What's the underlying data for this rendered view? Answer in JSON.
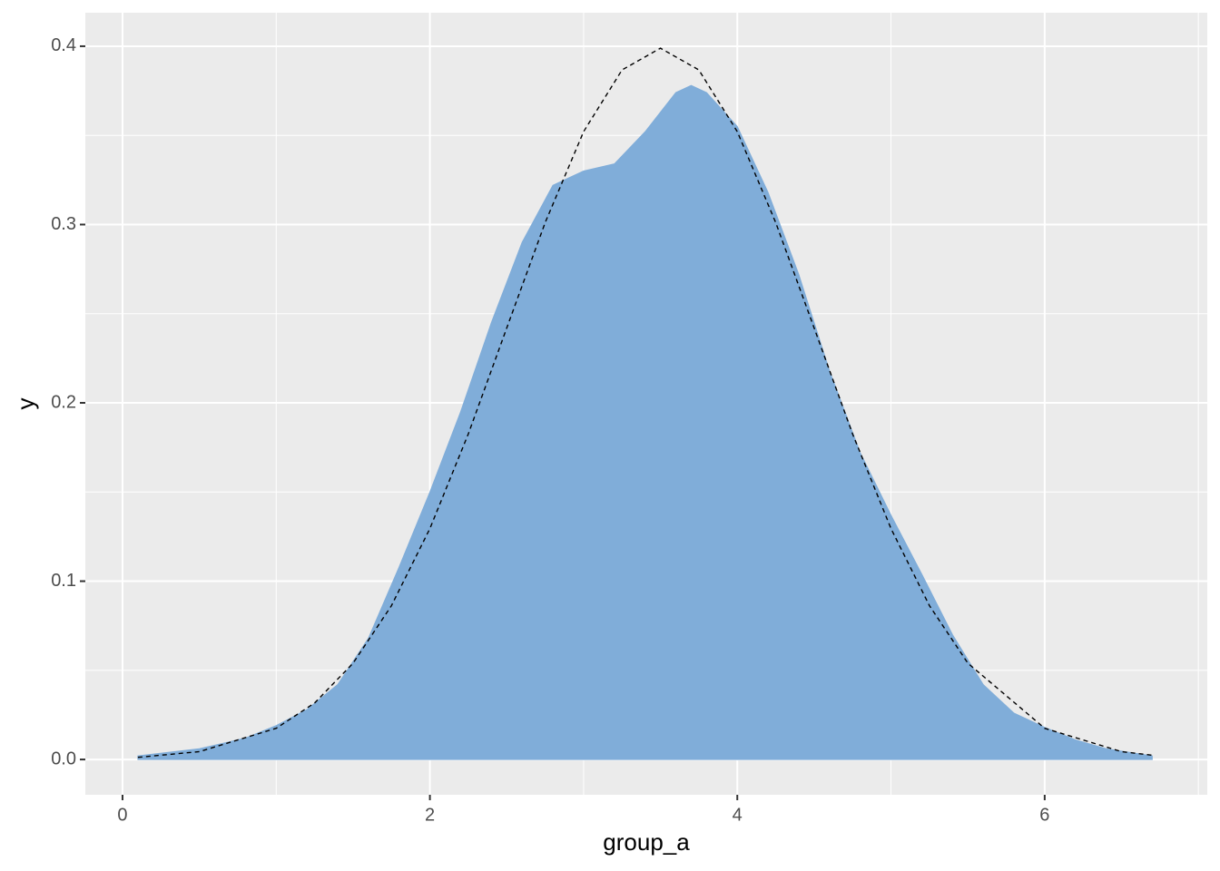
{
  "chart_data": {
    "type": "density",
    "x_label": "group_a",
    "y_label": "y",
    "xlim": [
      -0.242,
      7.058
    ],
    "ylim": [
      -0.0198,
      0.4188
    ],
    "xticks": [
      0,
      2,
      4,
      6
    ],
    "xminor": [
      1,
      3,
      5,
      7
    ],
    "yticks": [
      {
        "value": 0,
        "label": "0.0"
      },
      0.1,
      0.2,
      0.3,
      0.4
    ],
    "yminor": [
      0.05,
      0.15,
      0.25,
      0.35
    ],
    "grid": true,
    "series": [
      {
        "style": "area",
        "color": "#80add9",
        "x": [
          0.1,
          0.5,
          0.8,
          1.0,
          1.2,
          1.4,
          1.6,
          1.8,
          2.0,
          2.2,
          2.4,
          2.6,
          2.8,
          3.0,
          3.2,
          3.4,
          3.6,
          3.7,
          3.8,
          4.0,
          4.2,
          4.4,
          4.6,
          4.8,
          5.0,
          5.2,
          5.4,
          5.6,
          5.8,
          6.0,
          6.2,
          6.4,
          6.7
        ],
        "values": [
          0.002,
          0.006,
          0.012,
          0.019,
          0.028,
          0.042,
          0.068,
          0.108,
          0.15,
          0.195,
          0.245,
          0.29,
          0.322,
          0.33,
          0.334,
          0.352,
          0.374,
          0.378,
          0.374,
          0.355,
          0.318,
          0.272,
          0.218,
          0.172,
          0.137,
          0.104,
          0.07,
          0.042,
          0.026,
          0.018,
          0.011,
          0.006,
          0.002
        ]
      },
      {
        "style": "dashed",
        "color": "#000000",
        "x": [
          0.1,
          0.5,
          1,
          1.25,
          1.5,
          1.75,
          2,
          2.25,
          2.5,
          2.75,
          3,
          3.25,
          3.5,
          3.75,
          4,
          4.25,
          4.5,
          4.75,
          5,
          5.25,
          5.5,
          6,
          6.5,
          6.7
        ],
        "values": [
          0.0012,
          0.0044,
          0.0175,
          0.0317,
          0.054,
          0.0863,
          0.1295,
          0.1826,
          0.242,
          0.3011,
          0.3521,
          0.3867,
          0.3989,
          0.3867,
          0.3521,
          0.3011,
          0.242,
          0.1826,
          0.1295,
          0.0863,
          0.054,
          0.0175,
          0.0044,
          0.0024
        ]
      }
    ]
  }
}
